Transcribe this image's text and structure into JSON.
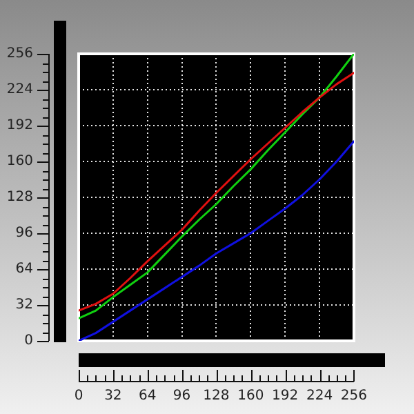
{
  "chart_data": {
    "type": "line",
    "x": [
      0,
      16,
      32,
      48,
      64,
      80,
      96,
      112,
      128,
      144,
      160,
      176,
      192,
      208,
      224,
      240,
      256
    ],
    "series": [
      {
        "color": "#e01010",
        "values": [
          27,
          33,
          42,
          56,
          71,
          85,
          99,
          116,
          132,
          147,
          162,
          176,
          190,
          204,
          217,
          229,
          239
        ]
      },
      {
        "color": "#10d010",
        "values": [
          20,
          27,
          39,
          50,
          61,
          77,
          93,
          108,
          122,
          138,
          153,
          170,
          186,
          202,
          217,
          236,
          256
        ]
      },
      {
        "color": "#1010e0",
        "values": [
          0,
          7,
          17,
          27,
          37,
          47,
          57,
          67,
          78,
          87,
          96,
          107,
          118,
          130,
          144,
          160,
          178
        ]
      }
    ],
    "xlim": [
      0,
      256
    ],
    "ylim": [
      0,
      256
    ],
    "xticks": [
      0,
      32,
      64,
      96,
      128,
      160,
      192,
      224,
      256
    ],
    "yticks": [
      0,
      32,
      64,
      96,
      128,
      160,
      192,
      224,
      256
    ],
    "grid": true,
    "legend": false,
    "marker": "none",
    "line_style": "solid"
  }
}
